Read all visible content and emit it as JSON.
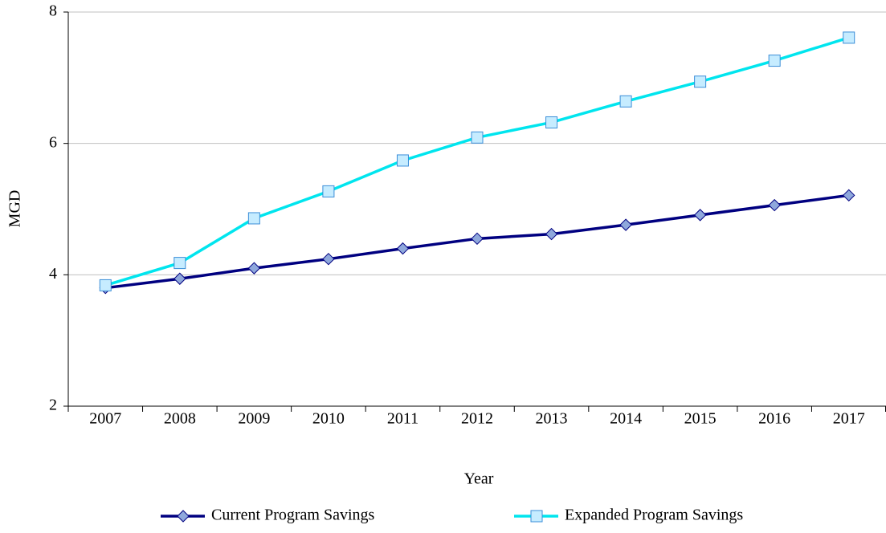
{
  "chart_data": {
    "type": "line",
    "categories": [
      "2007",
      "2008",
      "2009",
      "2010",
      "2011",
      "2012",
      "2013",
      "2014",
      "2015",
      "2016",
      "2017"
    ],
    "series": [
      {
        "name": "Current Program Savings",
        "color": "#000080",
        "marker": "diamond",
        "marker_color": "#8fa8dc",
        "values": [
          3.8,
          3.94,
          4.1,
          4.24,
          4.4,
          4.55,
          4.62,
          4.76,
          4.91,
          5.06,
          5.21
        ]
      },
      {
        "name": "Expanded Program Savings",
        "color": "#00e5ee",
        "marker": "square",
        "marker_color": "#c6ecff",
        "values": [
          3.84,
          4.18,
          4.86,
          5.27,
          5.74,
          6.09,
          6.32,
          6.64,
          6.94,
          7.26,
          7.61
        ]
      }
    ],
    "xlabel": "Year",
    "ylabel": "MGD",
    "ylim": [
      2,
      8
    ],
    "yticks": [
      2,
      4,
      6,
      8
    ],
    "grid": true,
    "legend": "bottom"
  }
}
